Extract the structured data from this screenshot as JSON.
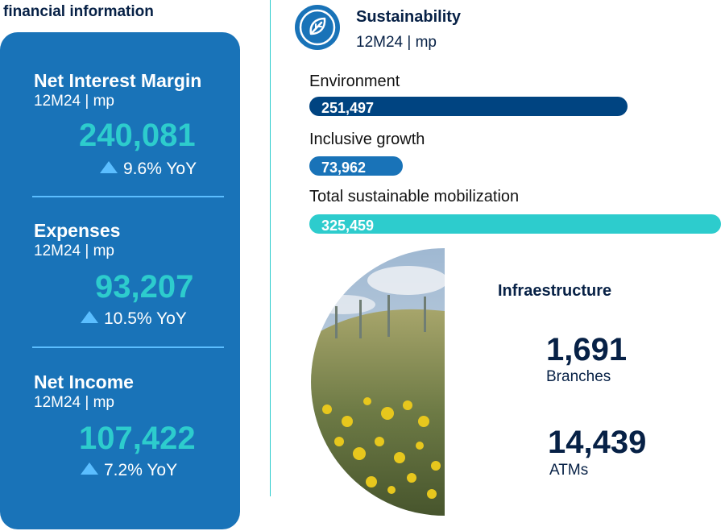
{
  "section_title": "financial information",
  "financials": [
    {
      "label": "Net Interest Margin",
      "period": "12M24 | mp",
      "value": "240,081",
      "change": "9.6% YoY"
    },
    {
      "label": "Expenses",
      "period": "12M24 | mp",
      "value": "93,207",
      "change": "10.5% YoY"
    },
    {
      "label": "Net Income",
      "period": "12M24 | mp",
      "value": "107,422",
      "change": "7.2% YoY"
    }
  ],
  "sustainability": {
    "title": "Sustainability",
    "period": "12M24 | mp",
    "icon": "leaf-icon"
  },
  "chart_data": {
    "type": "bar",
    "orientation": "horizontal",
    "categories": [
      "Environment",
      "Inclusive growth",
      "Total sustainable mobilization"
    ],
    "values": [
      251497,
      73962,
      325459
    ],
    "value_labels": [
      "251,497",
      "73,962",
      "325,459"
    ],
    "colors": [
      "#004481",
      "#1973b8",
      "#2dcccd"
    ],
    "xlim": [
      0,
      325459
    ],
    "grid": false
  },
  "infrastructure": {
    "title": "Infraestructure",
    "items": [
      {
        "value": "1,691",
        "label": "Branches"
      },
      {
        "value": "14,439",
        "label": "ATMs"
      }
    ]
  },
  "colors": {
    "navy": "#072146",
    "blue": "#1973b8",
    "dark_blue": "#004481",
    "aqua": "#2dcccd",
    "light_blue": "#5bbeff"
  }
}
